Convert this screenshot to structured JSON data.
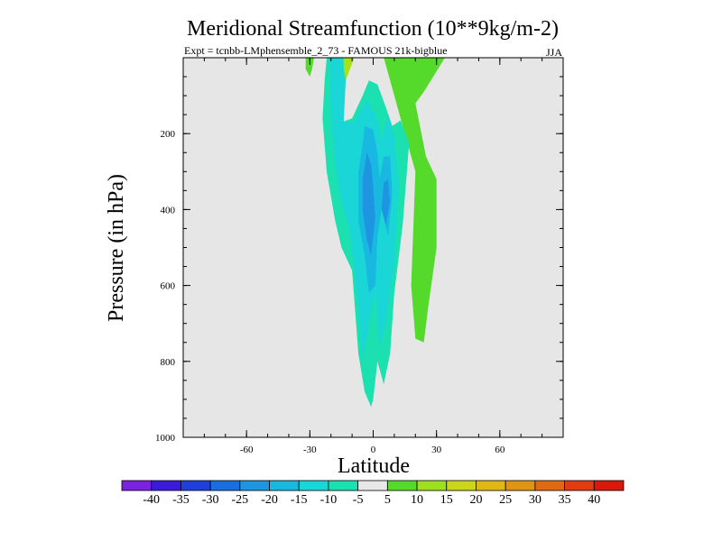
{
  "chart_data": {
    "type": "contour",
    "title": "Meridional Streamfunction (10**9kg/m-2)",
    "subtitle_left": "Expt = tcnbb-LMphensemble_2_73 - FAMOUS 21k-bigblue",
    "subtitle_right": "JJA",
    "xlabel": "Latitude",
    "ylabel": "Pressure (in hPa)",
    "xlim": [
      -90,
      90
    ],
    "ylim": [
      1000,
      0
    ],
    "x_ticks": [
      -60,
      -30,
      0,
      30,
      60
    ],
    "x_tick_labels": [
      "-60",
      "-30",
      "0",
      "30",
      "60"
    ],
    "y_ticks": [
      200,
      400,
      600,
      800,
      1000
    ],
    "y_tick_labels": [
      "200",
      "400",
      "600",
      "800",
      "1000"
    ],
    "background_color": "#e6e6e6",
    "colorbar": {
      "labels": [
        "-40",
        "-35",
        "-30",
        "-25",
        "-20",
        "-15",
        "-10",
        "-5",
        "5",
        "10",
        "15",
        "20",
        "25",
        "30",
        "35",
        "40"
      ],
      "colors": [
        "#7a22e0",
        "#3b1ad9",
        "#2040dd",
        "#1a6fe0",
        "#1d95e0",
        "#19b8e0",
        "#1ad6d6",
        "#1be0b0",
        "#e8e8e8",
        "#55d92b",
        "#9ee01d",
        "#c9d61a",
        "#e0b816",
        "#e09414",
        "#e06a12",
        "#e03c10",
        "#d91a0a"
      ]
    },
    "regions": [
      {
        "name": "green-positive-east",
        "level": "5 to 10",
        "color": "#55d92b",
        "lat_p": [
          [
            20,
            0
          ],
          [
            34,
            0
          ],
          [
            24,
            90
          ],
          [
            20,
            120
          ],
          [
            25,
            260
          ],
          [
            30,
            320
          ],
          [
            30,
            500
          ],
          [
            26,
            660
          ],
          [
            24,
            750
          ],
          [
            20,
            740
          ],
          [
            18,
            600
          ],
          [
            20,
            300
          ],
          [
            13,
            160
          ],
          [
            7,
            40
          ],
          [
            5,
            0
          ]
        ]
      },
      {
        "name": "green-positive-northwest",
        "level": "5 to 10",
        "color": "#55d92b",
        "lat_p": [
          [
            -32,
            0
          ],
          [
            -28,
            0
          ],
          [
            -29,
            30
          ],
          [
            -30,
            50
          ],
          [
            -32,
            30
          ]
        ]
      },
      {
        "name": "yellowgreen-top",
        "level": "10 to 15",
        "color": "#a8e01a",
        "lat_p": [
          [
            -21,
            0
          ],
          [
            -9,
            0
          ],
          [
            -11,
            30
          ],
          [
            -13,
            60
          ],
          [
            -17,
            40
          ]
        ]
      },
      {
        "name": "teal-weak-negative",
        "level": "-10 to -5",
        "color": "#1be0b0",
        "lat_p": [
          [
            -22,
            0
          ],
          [
            -14,
            0
          ],
          [
            -14,
            60
          ],
          [
            -15,
            170
          ],
          [
            -10,
            160
          ],
          [
            -5,
            100
          ],
          [
            -2,
            60
          ],
          [
            2,
            70
          ],
          [
            6,
            130
          ],
          [
            9,
            180
          ],
          [
            13,
            165
          ],
          [
            17,
            225
          ],
          [
            14,
            440
          ],
          [
            10,
            620
          ],
          [
            8,
            780
          ],
          [
            5,
            860
          ],
          [
            2,
            800
          ],
          [
            0,
            900
          ],
          [
            -1,
            920
          ],
          [
            -4,
            880
          ],
          [
            -7,
            780
          ],
          [
            -10,
            560
          ],
          [
            -15,
            500
          ],
          [
            -18,
            430
          ],
          [
            -22,
            300
          ],
          [
            -24,
            160
          ],
          [
            -23,
            60
          ]
        ]
      },
      {
        "name": "cyan-negative",
        "level": "-15 to -10",
        "color": "#1ad6d6",
        "lat_p": [
          [
            -21,
            0
          ],
          [
            -15,
            0
          ],
          [
            -13,
            60
          ],
          [
            -14,
            170
          ],
          [
            -9,
            170
          ],
          [
            -6,
            140
          ],
          [
            -3,
            110
          ],
          [
            2,
            160
          ],
          [
            4,
            220
          ],
          [
            7,
            150
          ],
          [
            10,
            210
          ],
          [
            12,
            330
          ],
          [
            10,
            540
          ],
          [
            6,
            700
          ],
          [
            3,
            760
          ],
          [
            1,
            620
          ],
          [
            -2,
            700
          ],
          [
            -5,
            800
          ],
          [
            -7,
            660
          ],
          [
            -11,
            460
          ],
          [
            -15,
            380
          ],
          [
            -18,
            280
          ],
          [
            -20,
            150
          ]
        ]
      },
      {
        "name": "sky-negative",
        "level": "-20 to -15",
        "color": "#19b8e0",
        "lat_p": [
          [
            -4,
            180
          ],
          [
            0,
            190
          ],
          [
            2,
            250
          ],
          [
            3,
            320
          ],
          [
            5,
            260
          ],
          [
            8,
            260
          ],
          [
            9,
            360
          ],
          [
            7,
            470
          ],
          [
            4,
            400
          ],
          [
            2,
            470
          ],
          [
            1,
            600
          ],
          [
            -2,
            620
          ],
          [
            -4,
            520
          ],
          [
            -7,
            430
          ],
          [
            -7,
            300
          ],
          [
            -5,
            230
          ]
        ]
      },
      {
        "name": "blue-negative-core",
        "level": "-25 to -20",
        "color": "#1d95e0",
        "lat_p": [
          [
            -3,
            250
          ],
          [
            -1,
            280
          ],
          [
            0,
            340
          ],
          [
            1,
            420
          ],
          [
            -1,
            520
          ],
          [
            -3,
            480
          ],
          [
            -5,
            400
          ],
          [
            -5,
            320
          ]
        ]
      },
      {
        "name": "blue-negative-east-core",
        "level": "-25 to -20",
        "color": "#1d95e0",
        "lat_p": [
          [
            5,
            330
          ],
          [
            7,
            320
          ],
          [
            8,
            380
          ],
          [
            6,
            440
          ],
          [
            4,
            400
          ]
        ]
      }
    ]
  }
}
